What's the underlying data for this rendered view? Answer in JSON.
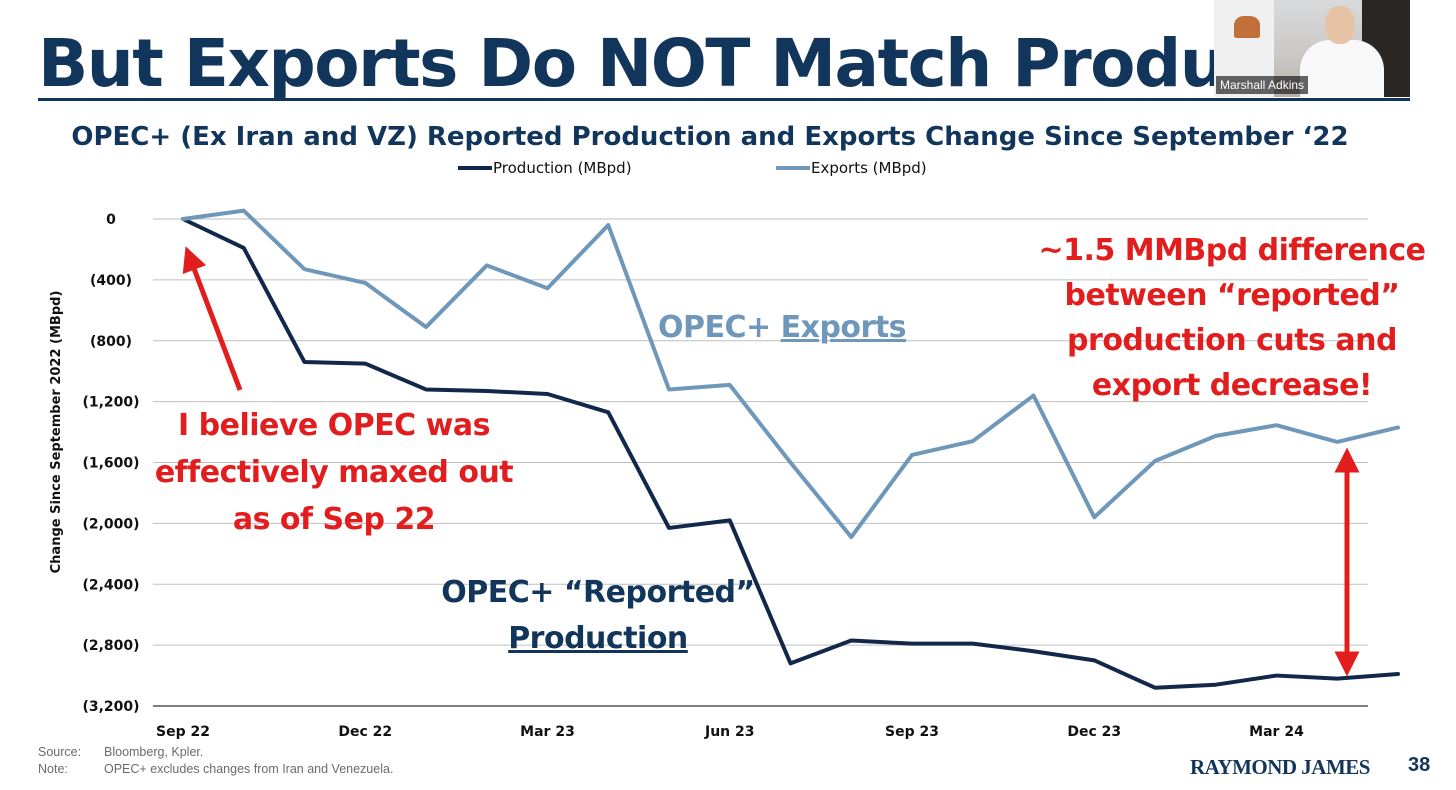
{
  "slide": {
    "title": "But Exports Do NOT Match Producti",
    "page_number": "38",
    "brand": "RAYMOND JAMES",
    "source_label": "Source:",
    "source_text": "Bloomberg, Kpler.",
    "note_label": "Note:",
    "note_text": "OPEC+ excludes changes from Iran and Venezuela."
  },
  "webcam": {
    "name": "Marshall Adkins"
  },
  "chart_data": {
    "type": "line",
    "title": "OPEC+ (Ex Iran and VZ) Reported Production and Exports Change Since September ‘22",
    "ylabel": "Change Since September 2022 (MBpd)",
    "ylim": [
      -3200,
      0
    ],
    "yticks": [
      0,
      -400,
      -800,
      -1200,
      -1600,
      -2000,
      -2400,
      -2800,
      -3200
    ],
    "ytick_labels": [
      "0",
      "(400)",
      "(800)",
      "(1,200)",
      "(1,600)",
      "(2,000)",
      "(2,400)",
      "(2,800)",
      "(3,200)"
    ],
    "x": [
      "Sep 22",
      "Oct 22",
      "Nov 22",
      "Dec 22",
      "Jan 23",
      "Feb 23",
      "Mar 23",
      "Apr 23",
      "May 23",
      "Jun 23",
      "Jul 23",
      "Aug 23",
      "Sep 23",
      "Oct 23",
      "Nov 23",
      "Dec 23",
      "Jan 24",
      "Feb 24",
      "Mar 24",
      "Apr 24",
      "May 24"
    ],
    "xtick_labels": [
      {
        "i": 0,
        "label": "Sep 22"
      },
      {
        "i": 3,
        "label": "Dec 22"
      },
      {
        "i": 6,
        "label": "Mar 23"
      },
      {
        "i": 9,
        "label": "Jun 23"
      },
      {
        "i": 12,
        "label": "Sep 23"
      },
      {
        "i": 15,
        "label": "Dec 23"
      },
      {
        "i": 18,
        "label": "Mar 24"
      }
    ],
    "grid": true,
    "legend_position": "top",
    "series": [
      {
        "name": "Production (MBpd)",
        "color": "#12284a",
        "values": [
          0,
          -190,
          -940,
          -950,
          -1120,
          -1130,
          -1150,
          -1270,
          -2030,
          -1980,
          -2920,
          -2770,
          -2790,
          -2790,
          -2840,
          -2900,
          -3080,
          -3060,
          -3000,
          -3020,
          -2990
        ]
      },
      {
        "name": "Exports (MBpd)",
        "color": "#6e97ba",
        "values": [
          0,
          55,
          -330,
          -420,
          -710,
          -305,
          -455,
          -40,
          -1120,
          -1090,
          -1600,
          -2090,
          -1550,
          -1460,
          -1160,
          -1960,
          -1590,
          -1425,
          -1355,
          -1465,
          -1370
        ]
      }
    ],
    "annotations": {
      "right_callout": [
        "~1.5 MMBpd difference",
        "between “reported”",
        "production cuts and",
        "export decrease!"
      ],
      "left_callout": [
        "I believe OPEC was",
        "effectively maxed out",
        "as of Sep 22"
      ],
      "exports_label_prefix": "OPEC+ ",
      "exports_label_word": "Exports",
      "production_label_line1": "OPEC+ “Reported”",
      "production_label_line2": "Production"
    }
  }
}
